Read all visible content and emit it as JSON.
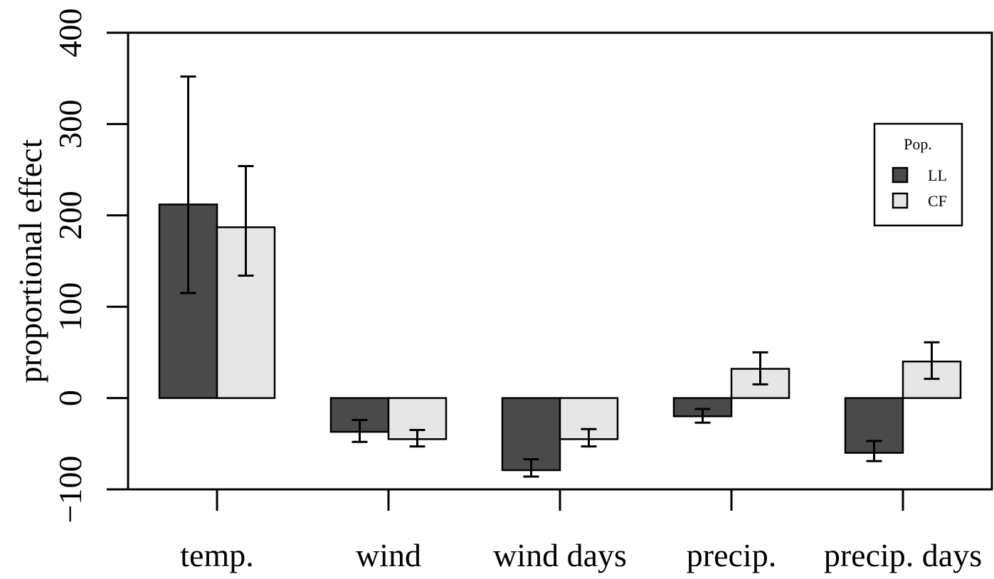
{
  "chart_data": {
    "type": "bar",
    "title": "",
    "xlabel": "",
    "ylabel": "proportional effect",
    "ylim": [
      -100,
      400
    ],
    "yticks": [
      -100,
      0,
      100,
      200,
      300,
      400
    ],
    "ytick_labels": [
      "−100",
      "0",
      "100",
      "200",
      "300",
      "400"
    ],
    "grid": false,
    "legend_position": "top-right",
    "legend_title": "Pop.",
    "categories": [
      "temp.",
      "wind",
      "wind days",
      "precip.",
      "precip. days"
    ],
    "series": [
      {
        "name": "LL",
        "color": "#4a4a4a",
        "values": [
          212,
          -37,
          -79,
          -20,
          -60
        ],
        "err_low": [
          115,
          -48,
          -86,
          -27,
          -69
        ],
        "err_high": [
          352,
          -24,
          -67,
          -12,
          -47
        ]
      },
      {
        "name": "CF",
        "color": "#e6e6e6",
        "values": [
          187,
          -45,
          -45,
          32,
          40
        ],
        "err_low": [
          134,
          -53,
          -53,
          15,
          21
        ],
        "err_high": [
          254,
          -35,
          -34,
          50,
          61
        ]
      }
    ]
  }
}
